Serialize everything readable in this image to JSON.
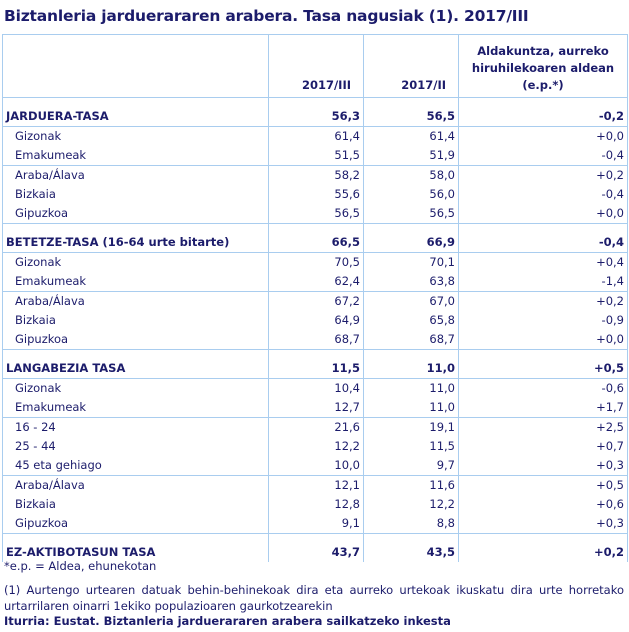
{
  "title": "Biztanleria jarduerararen arabera. Tasa nagusiak (1). 2017/III",
  "columns": [
    "",
    "2017/III",
    "2017/II",
    "Aldakuntza, aurreko hiruhilekoaren aldean (e.p.*)"
  ],
  "sections": [
    {
      "label": "JARDUERA-TASA",
      "values": [
        "56,3",
        "56,5",
        "-0,2"
      ],
      "groups": [
        [
          {
            "label": "Gizonak",
            "values": [
              "61,4",
              "61,4",
              "+0,0"
            ]
          },
          {
            "label": "Emakumeak",
            "values": [
              "51,5",
              "51,9",
              "-0,4"
            ]
          }
        ],
        [
          {
            "label": "Araba/Álava",
            "values": [
              "58,2",
              "58,0",
              "+0,2"
            ]
          },
          {
            "label": "Bizkaia",
            "values": [
              "55,6",
              "56,0",
              "-0,4"
            ]
          },
          {
            "label": "Gipuzkoa",
            "values": [
              "56,5",
              "56,5",
              "+0,0"
            ]
          }
        ]
      ]
    },
    {
      "label": "BETETZE-TASA (16-64 urte bitarte)",
      "values": [
        "66,5",
        "66,9",
        "-0,4"
      ],
      "groups": [
        [
          {
            "label": "Gizonak",
            "values": [
              "70,5",
              "70,1",
              "+0,4"
            ]
          },
          {
            "label": "Emakumeak",
            "values": [
              "62,4",
              "63,8",
              "-1,4"
            ]
          }
        ],
        [
          {
            "label": "Araba/Álava",
            "values": [
              "67,2",
              "67,0",
              "+0,2"
            ]
          },
          {
            "label": "Bizkaia",
            "values": [
              "64,9",
              "65,8",
              "-0,9"
            ]
          },
          {
            "label": "Gipuzkoa",
            "values": [
              "68,7",
              "68,7",
              "+0,0"
            ]
          }
        ]
      ]
    },
    {
      "label": "LANGABEZIA TASA",
      "values": [
        "11,5",
        "11,0",
        "+0,5"
      ],
      "groups": [
        [
          {
            "label": "Gizonak",
            "values": [
              "10,4",
              "11,0",
              "-0,6"
            ]
          },
          {
            "label": "Emakumeak",
            "values": [
              "12,7",
              "11,0",
              "+1,7"
            ]
          }
        ],
        [
          {
            "label": "16 - 24",
            "values": [
              "21,6",
              "19,1",
              "+2,5"
            ]
          },
          {
            "label": "25 - 44",
            "values": [
              "12,2",
              "11,5",
              "+0,7"
            ]
          },
          {
            "label": "45 eta gehiago",
            "values": [
              "10,0",
              "9,7",
              "+0,3"
            ]
          }
        ],
        [
          {
            "label": "Araba/Álava",
            "values": [
              "12,1",
              "11,6",
              "+0,5"
            ]
          },
          {
            "label": "Bizkaia",
            "values": [
              "12,8",
              "12,2",
              "+0,6"
            ]
          },
          {
            "label": "Gipuzkoa",
            "values": [
              "9,1",
              "8,8",
              "+0,3"
            ]
          }
        ]
      ]
    },
    {
      "label": "EZ-AKTIBOTASUN  TASA",
      "values": [
        "43,7",
        "43,5",
        "+0,2"
      ],
      "groups": []
    }
  ],
  "footnotes": {
    "ep": "*e.p. = Aldea, ehunekotan",
    "note1": "(1) Aurtengo urtearen datuak behin-behinekoak dira eta aurreko urtekoak ikuskatu dira urte horretako urtarrilaren oinarri 1ekiko populazioaren gaurkotzearekin",
    "source": "Iturria: Eustat. Biztanleria jarduerararen arabera sailkatzeko inkesta"
  }
}
